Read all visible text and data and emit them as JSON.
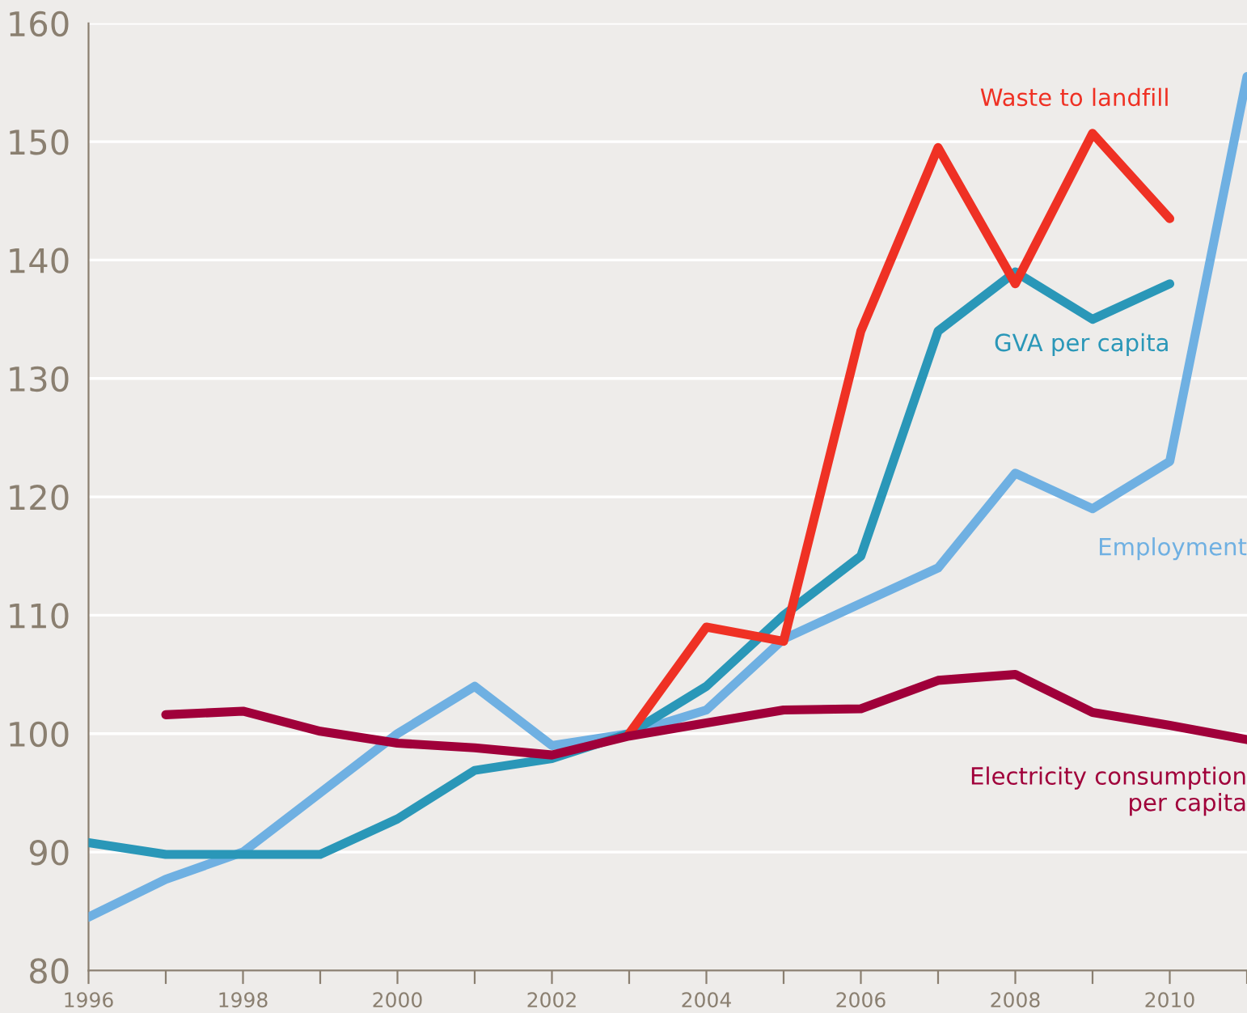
{
  "chart_data": {
    "type": "line",
    "xlim": [
      1996,
      2011
    ],
    "ylim": [
      80,
      160
    ],
    "xticks": [
      1996,
      {
        "value": 1997,
        "label": null
      },
      1998,
      {
        "value": 1999,
        "label": null
      },
      2000,
      {
        "value": 2001,
        "label": null
      },
      2002,
      {
        "value": 2003,
        "label": null
      },
      2004,
      {
        "value": 2005,
        "label": null
      },
      2006,
      {
        "value": 2007,
        "label": null
      },
      2008,
      {
        "value": 2009,
        "label": null
      },
      2010,
      {
        "value": 2011,
        "label": null
      }
    ],
    "yticks": [
      80,
      90,
      100,
      110,
      120,
      130,
      140,
      150,
      160
    ],
    "grid": "y",
    "legend": false,
    "marker": "none",
    "line_style": "solid",
    "series": [
      {
        "name": "Employment",
        "color": "#6fb0e2",
        "x": [
          1996,
          1997,
          1998,
          1999,
          2000,
          2001,
          2002,
          2003,
          2004,
          2005,
          2006,
          2007,
          2008,
          2009,
          2010,
          2011
        ],
        "values": [
          84.5,
          87.7,
          90,
          95,
          100,
          104,
          99,
          100,
          102,
          108,
          111,
          114,
          122,
          119,
          123,
          155.5
        ]
      },
      {
        "name": "GVA per capita",
        "color": "#2a97b8",
        "x": [
          1996,
          1997,
          1998,
          1999,
          2000,
          2001,
          2002,
          2003,
          2004,
          2005,
          2006,
          2007,
          2008,
          2009,
          2010
        ],
        "values": [
          90.8,
          89.8,
          89.8,
          89.8,
          92.8,
          96.9,
          97.9,
          100,
          104,
          110,
          115,
          134,
          139,
          135,
          138
        ]
      },
      {
        "name": "Waste to landfill",
        "color": "#ef3124",
        "x": [
          2003,
          2004,
          2005,
          2006,
          2007,
          2008,
          2009,
          2010
        ],
        "values": [
          100,
          109,
          107.8,
          134,
          149.5,
          138,
          150.7,
          143.5
        ]
      },
      {
        "name": "Electricity consumption\nper capita",
        "color": "#a0003a",
        "x": [
          1997,
          1998,
          1999,
          2000,
          2001,
          2002,
          2003,
          2004,
          2005,
          2006,
          2007,
          2008,
          2009,
          2010,
          2011
        ],
        "values": [
          101.6,
          101.9,
          100.2,
          99.2,
          98.8,
          98.2,
          99.8,
          100.9,
          102,
          102.1,
          104.5,
          105,
          101.8,
          100.7,
          99.5
        ]
      }
    ]
  }
}
